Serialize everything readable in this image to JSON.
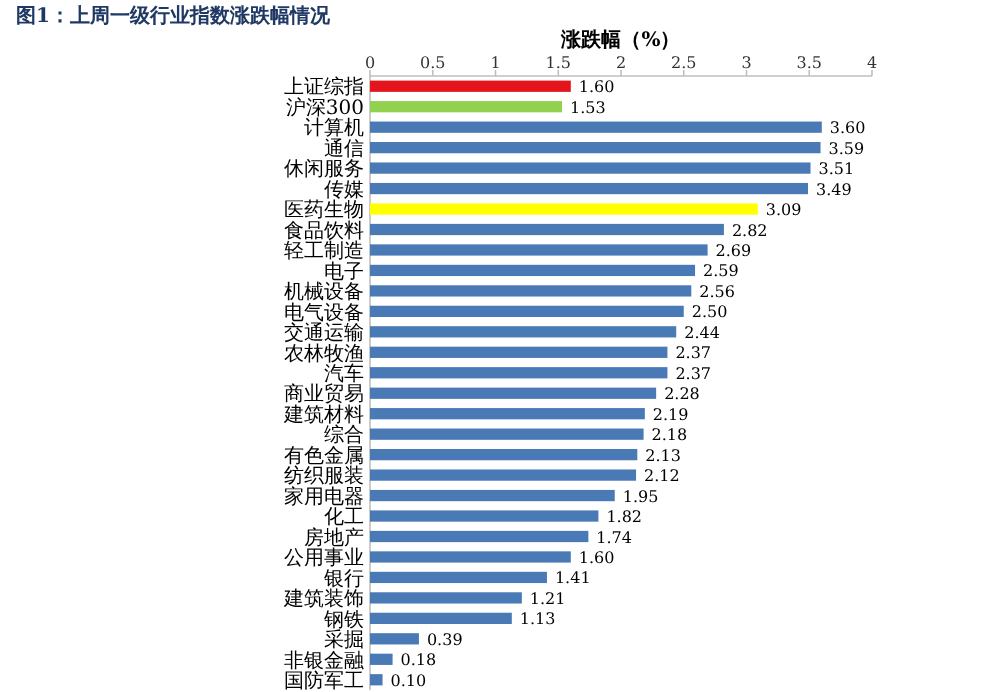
{
  "chart_data": {
    "type": "bar",
    "orientation": "horizontal",
    "title": "图1：上周一级行业指数涨跌幅情况",
    "xlabel": "涨跌幅（%）",
    "categories": [
      "上证综指",
      "沪深300",
      "计算机",
      "通信",
      "休闲服务",
      "传媒",
      "医药生物",
      "食品饮料",
      "轻工制造",
      "电子",
      "机械设备",
      "电气设备",
      "交通运输",
      "农林牧渔",
      "汽车",
      "商业贸易",
      "建筑材料",
      "综合",
      "有色金属",
      "纺织服装",
      "家用电器",
      "化工",
      "房地产",
      "公用事业",
      "银行",
      "建筑装饰",
      "钢铁",
      "采掘",
      "非银金融",
      "国防军工"
    ],
    "values": [
      1.6,
      1.53,
      3.6,
      3.59,
      3.51,
      3.49,
      3.09,
      2.82,
      2.69,
      2.59,
      2.56,
      2.5,
      2.44,
      2.37,
      2.37,
      2.28,
      2.19,
      2.18,
      2.13,
      2.12,
      1.95,
      1.82,
      1.74,
      1.6,
      1.41,
      1.21,
      1.13,
      0.39,
      0.18,
      0.1
    ],
    "value_labels": [
      "1.60",
      "1.53",
      "3.60",
      "3.59",
      "3.51",
      "3.49",
      "3.09",
      "2.82",
      "2.69",
      "2.59",
      "2.56",
      "2.50",
      "2.44",
      "2.37",
      "2.37",
      "2.28",
      "2.19",
      "2.18",
      "2.13",
      "2.12",
      "1.95",
      "1.82",
      "1.74",
      "1.60",
      "1.41",
      "1.21",
      "1.13",
      "0.39",
      "0.18",
      "0.10"
    ],
    "colors": [
      "#e3141b",
      "#92d050",
      "#4a7ab5",
      "#4a7ab5",
      "#4a7ab5",
      "#4a7ab5",
      "#ffff00",
      "#4a7ab5",
      "#4a7ab5",
      "#4a7ab5",
      "#4a7ab5",
      "#4a7ab5",
      "#4a7ab5",
      "#4a7ab5",
      "#4a7ab5",
      "#4a7ab5",
      "#4a7ab5",
      "#4a7ab5",
      "#4a7ab5",
      "#4a7ab5",
      "#4a7ab5",
      "#4a7ab5",
      "#4a7ab5",
      "#4a7ab5",
      "#4a7ab5",
      "#4a7ab5",
      "#4a7ab5",
      "#4a7ab5",
      "#4a7ab5",
      "#4a7ab5"
    ],
    "xlim": [
      0,
      4
    ],
    "xticks": [
      0,
      0.5,
      1,
      1.5,
      2,
      2.5,
      3,
      3.5,
      4
    ],
    "grid": false
  }
}
